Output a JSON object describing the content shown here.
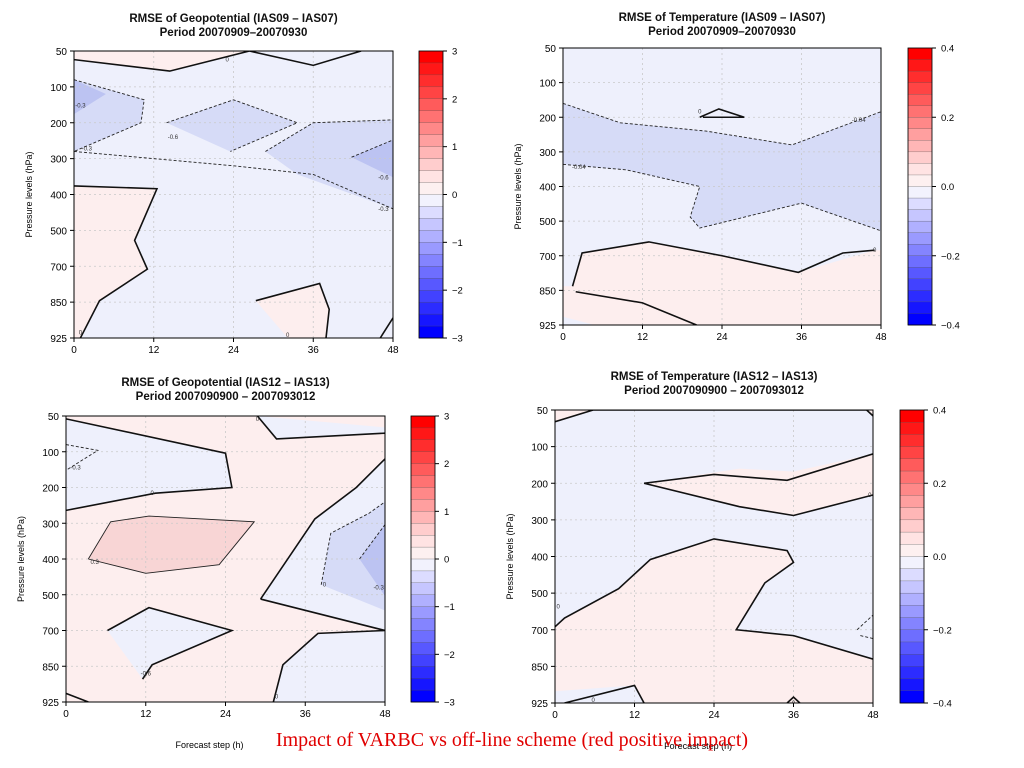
{
  "caption": "Impact of VARBC vs off-line scheme (red positive impact)",
  "colors": {
    "positive_light": "#fdeeee",
    "positive_mid": "#f8d5d5",
    "negative_light": "#eef0fc",
    "negative_mid": "#d6dbf7",
    "negative_dark": "#bcc3f2"
  },
  "chart_data": [
    {
      "type": "contour",
      "title": "RMSE of Geopotential (IAS09 – IAS07)",
      "subtitle": "Period 20070909–20070930",
      "ylabel": "Pressure levels (hPa)",
      "xlabel": "",
      "x_ticks": [
        "0",
        "12",
        "24",
        "36",
        "48"
      ],
      "y_ticks": [
        "50",
        "100",
        "200",
        "300",
        "400",
        "500",
        "700",
        "850",
        "925"
      ],
      "xlim": [
        0,
        48
      ],
      "colorbar_ticks": [
        "3",
        "2",
        "1",
        "0",
        "−1",
        "−2",
        "−3"
      ],
      "colorbar_range": [
        -3,
        3
      ],
      "contour_labels": [
        "0",
        "-0.3",
        "-0.3",
        "-0.6",
        "-0.6",
        "-0.3",
        "0",
        "0"
      ],
      "grid": true
    },
    {
      "type": "contour",
      "title": "RMSE of Temperature (IAS09 – IAS07)",
      "subtitle": "Period 20070909–20070930",
      "ylabel": "Pressure levels (hPa)",
      "xlabel": "",
      "x_ticks": [
        "0",
        "12",
        "24",
        "36",
        "48"
      ],
      "y_ticks": [
        "50",
        "100",
        "200",
        "300",
        "400",
        "500",
        "700",
        "850",
        "925"
      ],
      "xlim": [
        0,
        48
      ],
      "colorbar_ticks": [
        "0.4",
        "0.2",
        "0.0",
        "−0.2",
        "−0.4"
      ],
      "colorbar_range": [
        -0.4,
        0.4
      ],
      "contour_labels": [
        "0",
        "-0.04",
        "-0.04",
        "0"
      ],
      "grid": true
    },
    {
      "type": "contour",
      "title": "RMSE of Geopotential (IAS12 – IAS13)",
      "subtitle": "Period 2007090900 – 2007093012",
      "ylabel": "Pressure levels (hPa)",
      "xlabel": "Forecast step (h)",
      "x_ticks": [
        "0",
        "12",
        "24",
        "36",
        "48"
      ],
      "y_ticks": [
        "50",
        "100",
        "200",
        "300",
        "400",
        "500",
        "700",
        "850",
        "925"
      ],
      "xlim": [
        0,
        48
      ],
      "colorbar_ticks": [
        "3",
        "2",
        "1",
        "0",
        "−1",
        "−2",
        "−3"
      ],
      "colorbar_range": [
        -3,
        3
      ],
      "contour_labels": [
        "-0.3",
        "0",
        "0.3",
        "0",
        "0",
        "-0.3",
        "-0.6",
        "0"
      ],
      "grid": true
    },
    {
      "type": "contour",
      "title": "RMSE of Temperature (IAS12 – IAS13)",
      "subtitle": "Period 2007090900 – 2007093012",
      "ylabel": "Pressure levels (hPa)",
      "xlabel": "Forecast step (h)",
      "x_ticks": [
        "0",
        "12",
        "24",
        "36",
        "48"
      ],
      "y_ticks": [
        "50",
        "100",
        "200",
        "300",
        "400",
        "500",
        "700",
        "850",
        "925"
      ],
      "xlim": [
        0,
        48
      ],
      "colorbar_ticks": [
        "0.4",
        "0.2",
        "0.0",
        "−0.2",
        "−0.4"
      ],
      "colorbar_range": [
        -0.4,
        0.4
      ],
      "contour_labels": [
        "0",
        "0",
        "0",
        "0"
      ],
      "grid": true
    }
  ]
}
